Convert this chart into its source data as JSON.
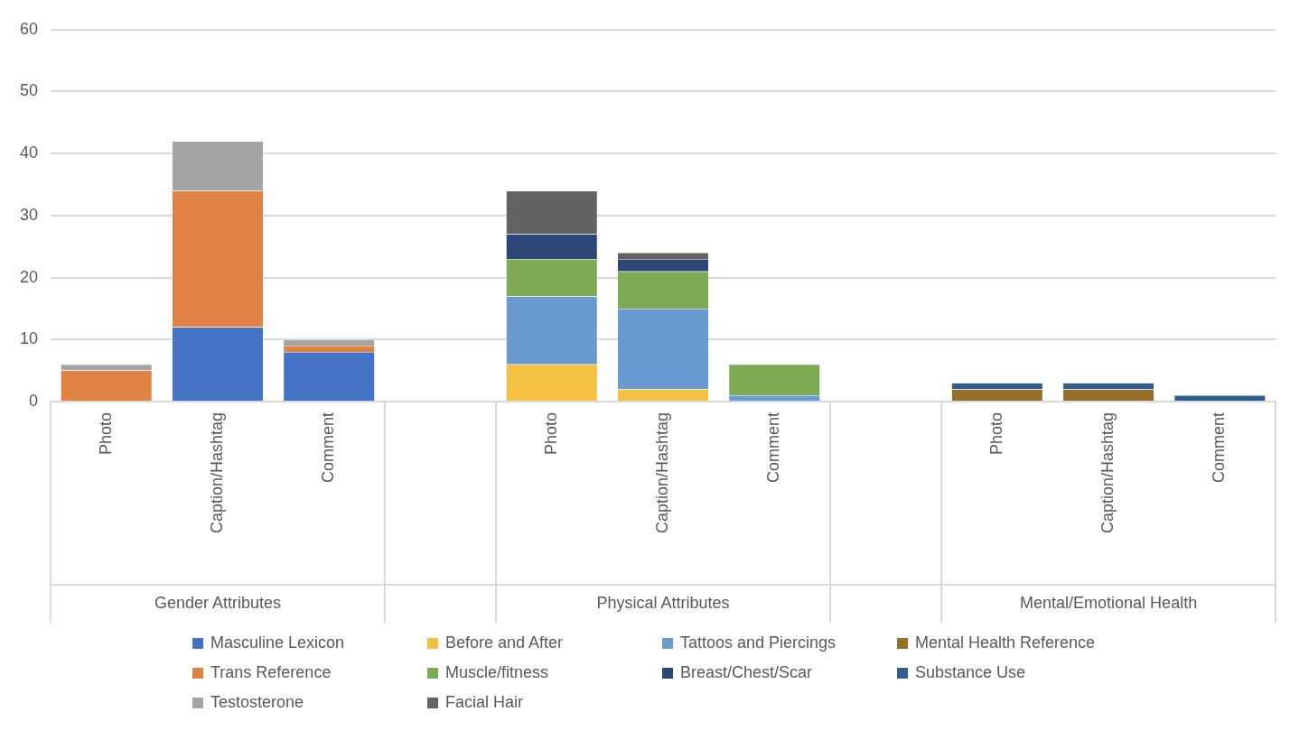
{
  "chart_data": {
    "type": "bar",
    "stacked": true,
    "categories": [
      "Photo",
      "Caption/Hashtag",
      "Comment",
      null,
      "Photo",
      "Caption/Hashtag",
      "Comment",
      null,
      "Photo",
      "Caption/Hashtag",
      "Comment"
    ],
    "annotations": [
      "Gender Attributes",
      "Physical Attributes",
      "Mental/Emotional Health"
    ],
    "series": [
      {
        "name": "Masculine Lexicon",
        "color": "#4472c4",
        "values": [
          0,
          12,
          8,
          null,
          0,
          0,
          0,
          null,
          0,
          0,
          0
        ]
      },
      {
        "name": "Before and After",
        "color": "#f5c143",
        "values": [
          0,
          0,
          0,
          null,
          6,
          2,
          0,
          null,
          0,
          0,
          0
        ]
      },
      {
        "name": "Tattoos and Piercings",
        "color": "#699bd0",
        "values": [
          0,
          0,
          0,
          null,
          11,
          13,
          1,
          null,
          0,
          0,
          0
        ]
      },
      {
        "name": "Mental Health Reference",
        "color": "#957029",
        "values": [
          0,
          0,
          0,
          null,
          0,
          0,
          0,
          null,
          2,
          2,
          0
        ]
      },
      {
        "name": "Trans Reference",
        "color": "#e08244",
        "values": [
          5,
          22,
          1,
          null,
          0,
          0,
          0,
          null,
          0,
          0,
          0
        ]
      },
      {
        "name": "Muscle/fitness",
        "color": "#7ea955",
        "values": [
          0,
          0,
          0,
          null,
          6,
          6,
          5,
          null,
          0,
          0,
          0
        ]
      },
      {
        "name": "Breast/Chest/Scar",
        "color": "#2c4676",
        "values": [
          0,
          0,
          0,
          null,
          4,
          2,
          0,
          null,
          0,
          0,
          0
        ]
      },
      {
        "name": "Substance Use",
        "color": "#325e8e",
        "values": [
          0,
          0,
          0,
          null,
          0,
          0,
          0,
          null,
          1,
          1,
          1
        ]
      },
      {
        "name": "Testosterone",
        "color": "#a5a5a5",
        "values": [
          1,
          8,
          1,
          null,
          0,
          0,
          0,
          null,
          0,
          0,
          0
        ]
      },
      {
        "name": "Facial Hair",
        "color": "#636363",
        "values": [
          0,
          0,
          0,
          null,
          7,
          1,
          0,
          null,
          0,
          0,
          0
        ]
      }
    ],
    "ylim": [
      0,
      60
    ],
    "yticks": [
      0,
      10,
      20,
      30,
      40,
      50,
      60
    ],
    "grid": "y",
    "legend": "bottom"
  }
}
